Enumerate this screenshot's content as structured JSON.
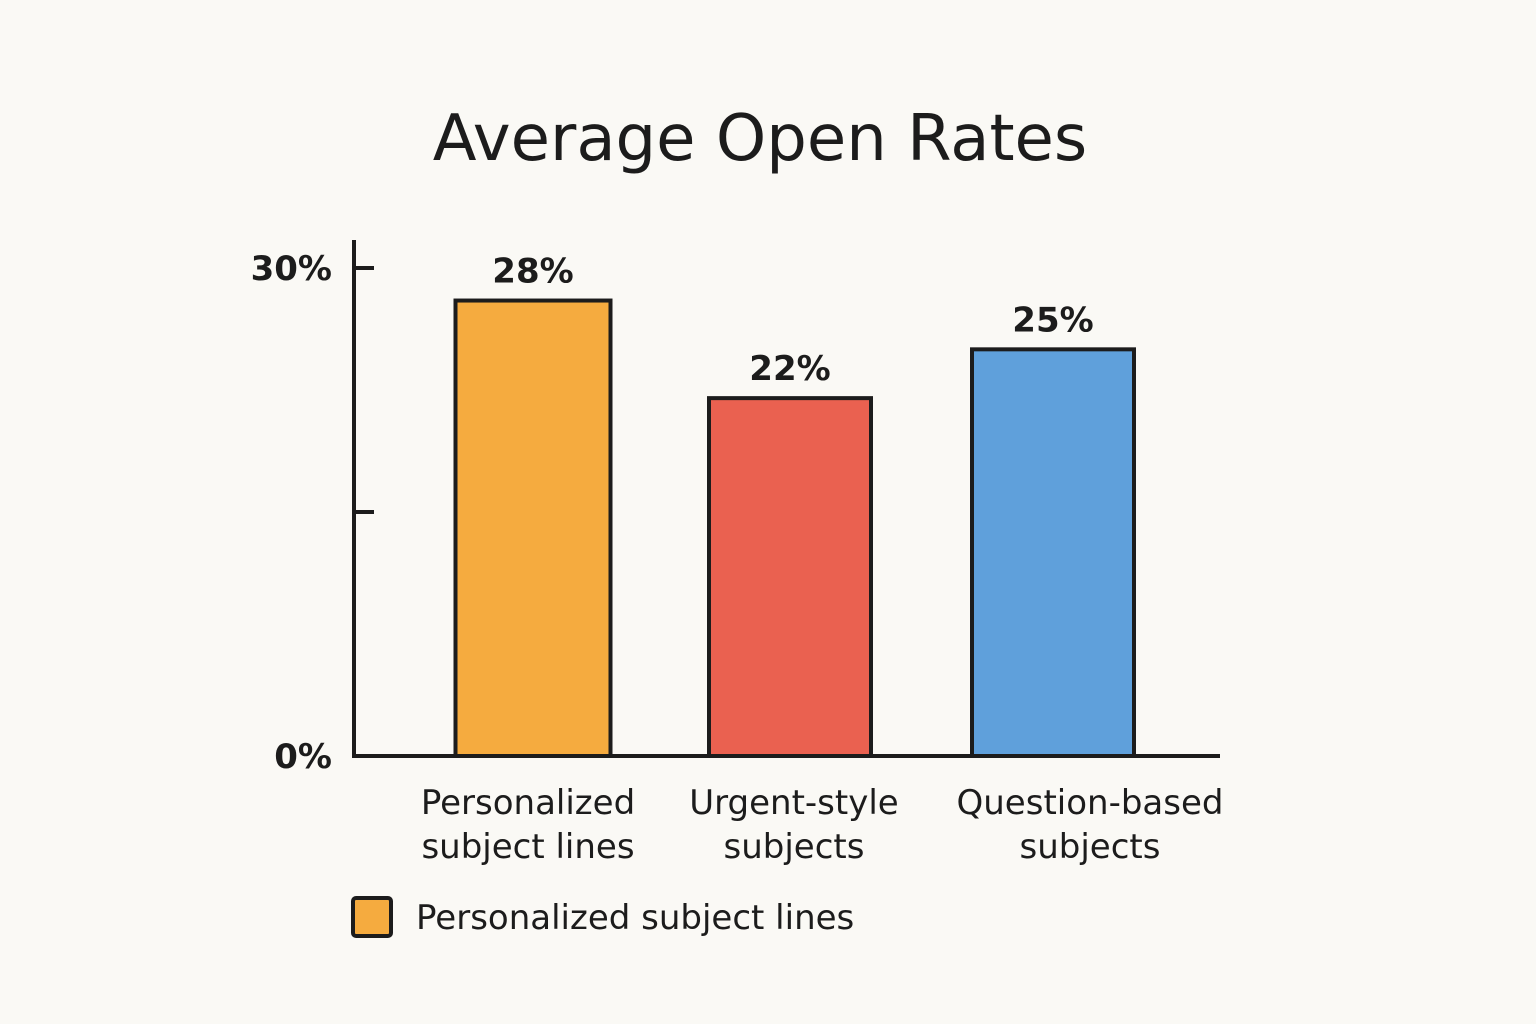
{
  "chart_data": {
    "type": "bar",
    "title": "Average Open Rates",
    "xlabel": "",
    "ylabel": "",
    "ylim": [
      0,
      30
    ],
    "y_ticks": [
      {
        "value": 0,
        "label": "0%"
      },
      {
        "value": 15,
        "label": ""
      },
      {
        "value": 30,
        "label": "30%"
      }
    ],
    "grid": false,
    "categories": [
      [
        "Personalized",
        "subject lines"
      ],
      [
        "Urgent-style",
        "subjects"
      ],
      [
        "Question-based",
        "subjects"
      ]
    ],
    "values": [
      28,
      22,
      25
    ],
    "value_labels": [
      "28%",
      "22%",
      "25%"
    ],
    "bar_colors": [
      "#f5ab3f",
      "#ea6150",
      "#5fa0db"
    ],
    "legend": {
      "position": "bottom-left",
      "entries": [
        {
          "label": "Personalized subject lines",
          "color": "#f5ab3f"
        }
      ]
    }
  },
  "colors": {
    "background": "#faf9f5",
    "ink": "#1c1c1c"
  }
}
